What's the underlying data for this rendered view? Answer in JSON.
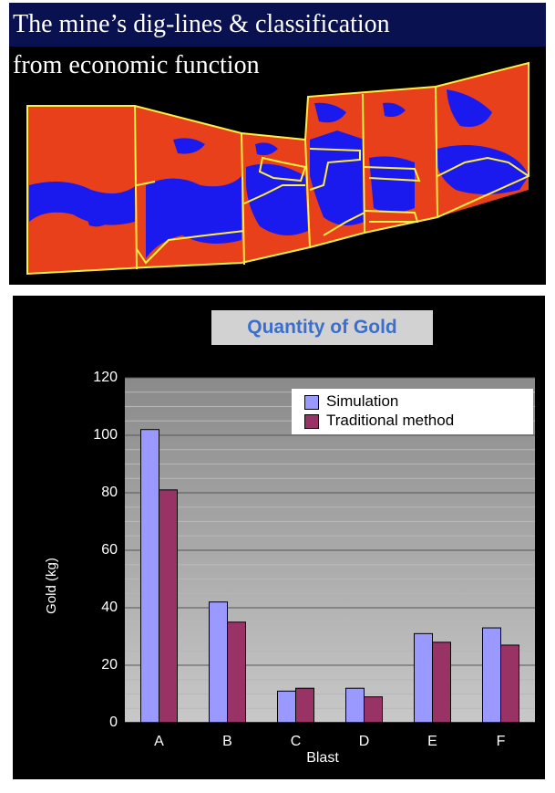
{
  "map": {
    "title_line1": "The mine’s dig-lines & classification",
    "title_line2": "from economic function",
    "colors": {
      "ore": "#e8401a",
      "waste": "#1a1aee",
      "digline": "#ffee44",
      "title_bg": "#0a1150"
    }
  },
  "chart_data": {
    "type": "bar",
    "title": "Quantity of Gold",
    "xlabel": "Blast",
    "ylabel": "Gold (kg)",
    "ylim": [
      0,
      120
    ],
    "yticks": [
      0,
      20,
      40,
      60,
      80,
      100,
      120
    ],
    "categories": [
      "A",
      "B",
      "C",
      "D",
      "E",
      "F"
    ],
    "series": [
      {
        "name": "Simulation",
        "color": "#9999ff",
        "values": [
          102,
          42,
          11,
          12,
          31,
          33
        ]
      },
      {
        "name": "Traditional method",
        "color": "#993366",
        "values": [
          81,
          35,
          12,
          9,
          28,
          27
        ]
      }
    ],
    "grid": true,
    "legend_position": "top-right"
  }
}
